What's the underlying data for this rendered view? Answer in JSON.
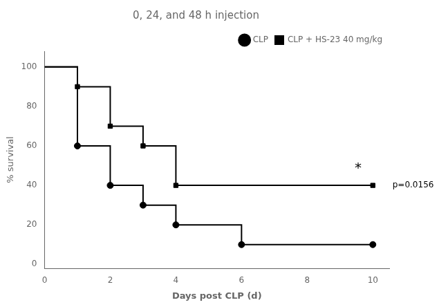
{
  "chart_data": {
    "type": "line",
    "title": "0, 24, and 48 h injection",
    "x_label": "Days post CLP (d)",
    "y_label": "% survival",
    "xlim": [
      0,
      10.5
    ],
    "ylim": [
      -2,
      108
    ],
    "xticks": [
      0,
      2,
      4,
      6,
      8,
      10
    ],
    "yticks": [
      0,
      20,
      40,
      60,
      80,
      100
    ],
    "grid": false,
    "legend": "upper right",
    "series": [
      {
        "name": "CLP",
        "color": "#000000",
        "marker": "circle",
        "line_style": "solid",
        "x": [
          0,
          1,
          1,
          2,
          2,
          3,
          3,
          4,
          4,
          6,
          6,
          10
        ],
        "values": [
          100,
          100,
          60,
          60,
          40,
          40,
          30,
          30,
          20,
          20,
          10,
          10
        ],
        "marker_x": [
          1,
          2,
          3,
          4,
          6,
          10
        ],
        "marker_values": [
          60,
          40,
          30,
          20,
          10,
          10
        ]
      },
      {
        "name": "CLP + HS-23 40 mg/kg",
        "color": "#000000",
        "marker": "square",
        "line_style": "solid",
        "x": [
          0,
          1,
          1,
          2,
          2,
          3,
          3,
          4,
          4,
          10
        ],
        "values": [
          100,
          100,
          90,
          90,
          70,
          70,
          60,
          60,
          40,
          40
        ],
        "marker_x": [
          1,
          2,
          3,
          4,
          10
        ],
        "marker_values": [
          90,
          70,
          60,
          40,
          40
        ]
      }
    ],
    "annotations": [
      {
        "text": "*",
        "x": 9.55,
        "y": 47
      },
      {
        "text": "p=0.0156",
        "x": 10.6,
        "y": 40
      }
    ]
  }
}
